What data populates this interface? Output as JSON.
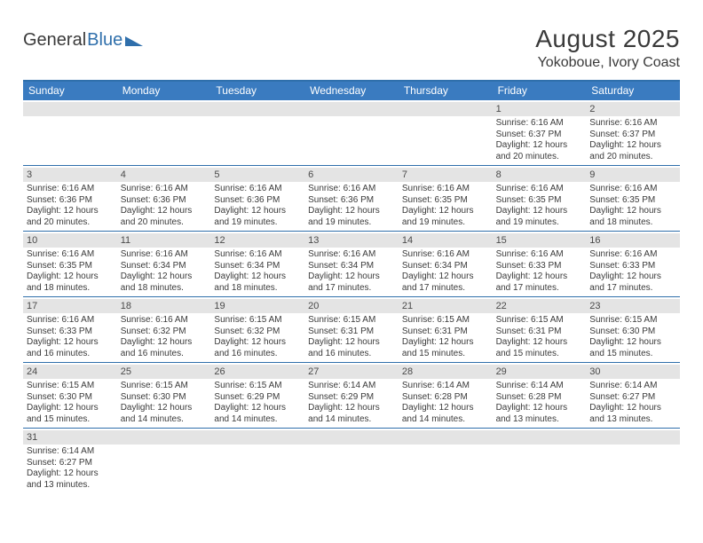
{
  "logo": {
    "text_a": "General",
    "text_b": "Blue",
    "tri_color": "#2f6fab"
  },
  "header": {
    "month": "August 2025",
    "location": "Yokoboue, Ivory Coast"
  },
  "colors": {
    "header_bar": "#3a7bc0",
    "rule": "#2f6fab",
    "day_head_bg": "#e4e4e4",
    "text": "#3a3a3a"
  },
  "weekdays": [
    "Sunday",
    "Monday",
    "Tuesday",
    "Wednesday",
    "Thursday",
    "Friday",
    "Saturday"
  ],
  "weeks": [
    [
      {
        "n": "",
        "sunrise": "",
        "sunset": "",
        "daylight": ""
      },
      {
        "n": "",
        "sunrise": "",
        "sunset": "",
        "daylight": ""
      },
      {
        "n": "",
        "sunrise": "",
        "sunset": "",
        "daylight": ""
      },
      {
        "n": "",
        "sunrise": "",
        "sunset": "",
        "daylight": ""
      },
      {
        "n": "",
        "sunrise": "",
        "sunset": "",
        "daylight": ""
      },
      {
        "n": "1",
        "sunrise": "Sunrise: 6:16 AM",
        "sunset": "Sunset: 6:37 PM",
        "daylight": "Daylight: 12 hours and 20 minutes."
      },
      {
        "n": "2",
        "sunrise": "Sunrise: 6:16 AM",
        "sunset": "Sunset: 6:37 PM",
        "daylight": "Daylight: 12 hours and 20 minutes."
      }
    ],
    [
      {
        "n": "3",
        "sunrise": "Sunrise: 6:16 AM",
        "sunset": "Sunset: 6:36 PM",
        "daylight": "Daylight: 12 hours and 20 minutes."
      },
      {
        "n": "4",
        "sunrise": "Sunrise: 6:16 AM",
        "sunset": "Sunset: 6:36 PM",
        "daylight": "Daylight: 12 hours and 20 minutes."
      },
      {
        "n": "5",
        "sunrise": "Sunrise: 6:16 AM",
        "sunset": "Sunset: 6:36 PM",
        "daylight": "Daylight: 12 hours and 19 minutes."
      },
      {
        "n": "6",
        "sunrise": "Sunrise: 6:16 AM",
        "sunset": "Sunset: 6:36 PM",
        "daylight": "Daylight: 12 hours and 19 minutes."
      },
      {
        "n": "7",
        "sunrise": "Sunrise: 6:16 AM",
        "sunset": "Sunset: 6:35 PM",
        "daylight": "Daylight: 12 hours and 19 minutes."
      },
      {
        "n": "8",
        "sunrise": "Sunrise: 6:16 AM",
        "sunset": "Sunset: 6:35 PM",
        "daylight": "Daylight: 12 hours and 19 minutes."
      },
      {
        "n": "9",
        "sunrise": "Sunrise: 6:16 AM",
        "sunset": "Sunset: 6:35 PM",
        "daylight": "Daylight: 12 hours and 18 minutes."
      }
    ],
    [
      {
        "n": "10",
        "sunrise": "Sunrise: 6:16 AM",
        "sunset": "Sunset: 6:35 PM",
        "daylight": "Daylight: 12 hours and 18 minutes."
      },
      {
        "n": "11",
        "sunrise": "Sunrise: 6:16 AM",
        "sunset": "Sunset: 6:34 PM",
        "daylight": "Daylight: 12 hours and 18 minutes."
      },
      {
        "n": "12",
        "sunrise": "Sunrise: 6:16 AM",
        "sunset": "Sunset: 6:34 PM",
        "daylight": "Daylight: 12 hours and 18 minutes."
      },
      {
        "n": "13",
        "sunrise": "Sunrise: 6:16 AM",
        "sunset": "Sunset: 6:34 PM",
        "daylight": "Daylight: 12 hours and 17 minutes."
      },
      {
        "n": "14",
        "sunrise": "Sunrise: 6:16 AM",
        "sunset": "Sunset: 6:34 PM",
        "daylight": "Daylight: 12 hours and 17 minutes."
      },
      {
        "n": "15",
        "sunrise": "Sunrise: 6:16 AM",
        "sunset": "Sunset: 6:33 PM",
        "daylight": "Daylight: 12 hours and 17 minutes."
      },
      {
        "n": "16",
        "sunrise": "Sunrise: 6:16 AM",
        "sunset": "Sunset: 6:33 PM",
        "daylight": "Daylight: 12 hours and 17 minutes."
      }
    ],
    [
      {
        "n": "17",
        "sunrise": "Sunrise: 6:16 AM",
        "sunset": "Sunset: 6:33 PM",
        "daylight": "Daylight: 12 hours and 16 minutes."
      },
      {
        "n": "18",
        "sunrise": "Sunrise: 6:16 AM",
        "sunset": "Sunset: 6:32 PM",
        "daylight": "Daylight: 12 hours and 16 minutes."
      },
      {
        "n": "19",
        "sunrise": "Sunrise: 6:15 AM",
        "sunset": "Sunset: 6:32 PM",
        "daylight": "Daylight: 12 hours and 16 minutes."
      },
      {
        "n": "20",
        "sunrise": "Sunrise: 6:15 AM",
        "sunset": "Sunset: 6:31 PM",
        "daylight": "Daylight: 12 hours and 16 minutes."
      },
      {
        "n": "21",
        "sunrise": "Sunrise: 6:15 AM",
        "sunset": "Sunset: 6:31 PM",
        "daylight": "Daylight: 12 hours and 15 minutes."
      },
      {
        "n": "22",
        "sunrise": "Sunrise: 6:15 AM",
        "sunset": "Sunset: 6:31 PM",
        "daylight": "Daylight: 12 hours and 15 minutes."
      },
      {
        "n": "23",
        "sunrise": "Sunrise: 6:15 AM",
        "sunset": "Sunset: 6:30 PM",
        "daylight": "Daylight: 12 hours and 15 minutes."
      }
    ],
    [
      {
        "n": "24",
        "sunrise": "Sunrise: 6:15 AM",
        "sunset": "Sunset: 6:30 PM",
        "daylight": "Daylight: 12 hours and 15 minutes."
      },
      {
        "n": "25",
        "sunrise": "Sunrise: 6:15 AM",
        "sunset": "Sunset: 6:30 PM",
        "daylight": "Daylight: 12 hours and 14 minutes."
      },
      {
        "n": "26",
        "sunrise": "Sunrise: 6:15 AM",
        "sunset": "Sunset: 6:29 PM",
        "daylight": "Daylight: 12 hours and 14 minutes."
      },
      {
        "n": "27",
        "sunrise": "Sunrise: 6:14 AM",
        "sunset": "Sunset: 6:29 PM",
        "daylight": "Daylight: 12 hours and 14 minutes."
      },
      {
        "n": "28",
        "sunrise": "Sunrise: 6:14 AM",
        "sunset": "Sunset: 6:28 PM",
        "daylight": "Daylight: 12 hours and 14 minutes."
      },
      {
        "n": "29",
        "sunrise": "Sunrise: 6:14 AM",
        "sunset": "Sunset: 6:28 PM",
        "daylight": "Daylight: 12 hours and 13 minutes."
      },
      {
        "n": "30",
        "sunrise": "Sunrise: 6:14 AM",
        "sunset": "Sunset: 6:27 PM",
        "daylight": "Daylight: 12 hours and 13 minutes."
      }
    ],
    [
      {
        "n": "31",
        "sunrise": "Sunrise: 6:14 AM",
        "sunset": "Sunset: 6:27 PM",
        "daylight": "Daylight: 12 hours and 13 minutes."
      },
      {
        "n": "",
        "sunrise": "",
        "sunset": "",
        "daylight": ""
      },
      {
        "n": "",
        "sunrise": "",
        "sunset": "",
        "daylight": ""
      },
      {
        "n": "",
        "sunrise": "",
        "sunset": "",
        "daylight": ""
      },
      {
        "n": "",
        "sunrise": "",
        "sunset": "",
        "daylight": ""
      },
      {
        "n": "",
        "sunrise": "",
        "sunset": "",
        "daylight": ""
      },
      {
        "n": "",
        "sunrise": "",
        "sunset": "",
        "daylight": ""
      }
    ]
  ]
}
